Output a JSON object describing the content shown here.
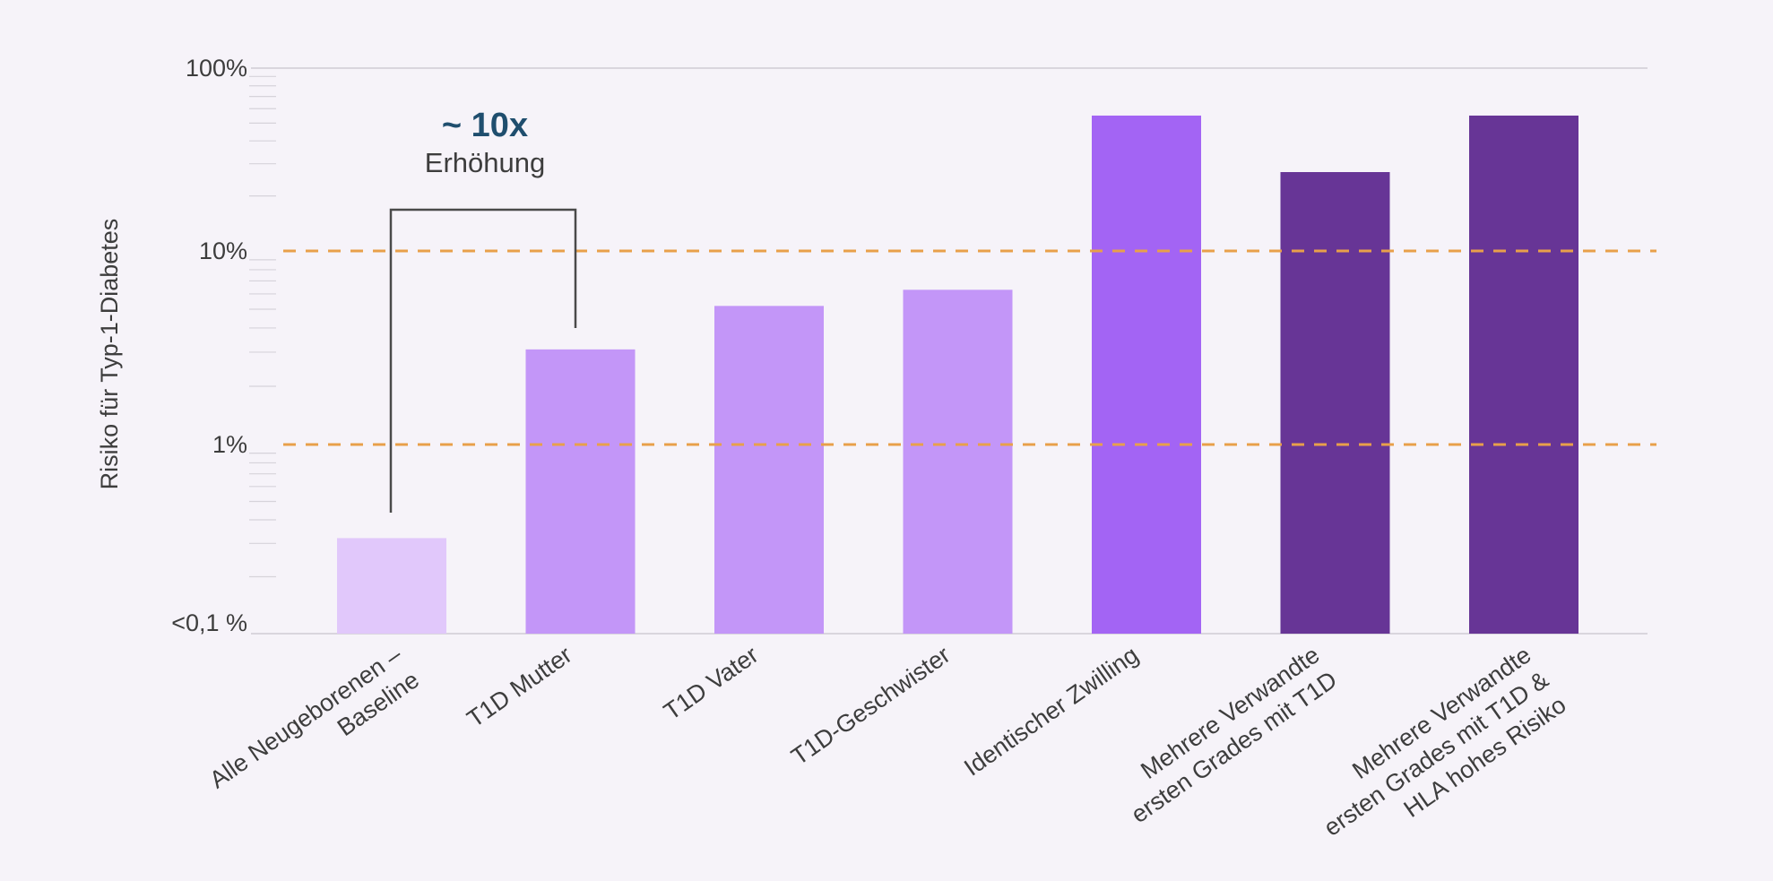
{
  "chart_data": {
    "type": "bar",
    "title": "",
    "xlabel": "",
    "ylabel": "Risiko für Typ-1-Diabetes",
    "yscale": "log",
    "ylim": [
      0.1,
      100
    ],
    "yticks": [
      {
        "value": 0.1,
        "label": "<0,1 %"
      },
      {
        "value": 1,
        "label": "1%"
      },
      {
        "value": 10,
        "label": "10%"
      },
      {
        "value": 100,
        "label": "100%"
      }
    ],
    "reference_lines": [
      {
        "value": 1,
        "style": "dashed",
        "color": "#e8a04a"
      },
      {
        "value": 10,
        "style": "dashed",
        "color": "#e8a04a"
      }
    ],
    "grid": false,
    "categories": [
      [
        "Alle Neugeborenen –",
        "Baseline"
      ],
      [
        "T1D Mutter"
      ],
      [
        "T1D Vater"
      ],
      [
        "T1D-Geschwister"
      ],
      [
        "Identischer Zwilling"
      ],
      [
        "Mehrere Verwandte",
        "ersten Grades mit T1D"
      ],
      [
        "Mehrere Verwandte",
        "ersten Grades mit T1D &",
        "HLA hohes Risiko"
      ]
    ],
    "values": [
      0.32,
      3.1,
      5.2,
      6.3,
      55,
      27,
      55
    ],
    "colors": [
      "#e1c8fb",
      "#c396f8",
      "#c396f8",
      "#c396f8",
      "#a364f4",
      "#673596",
      "#673596"
    ],
    "annotations": [
      {
        "text": "~ 10x",
        "subtext": "Erhöhung",
        "from_category": 0,
        "to_category": 1
      }
    ]
  }
}
